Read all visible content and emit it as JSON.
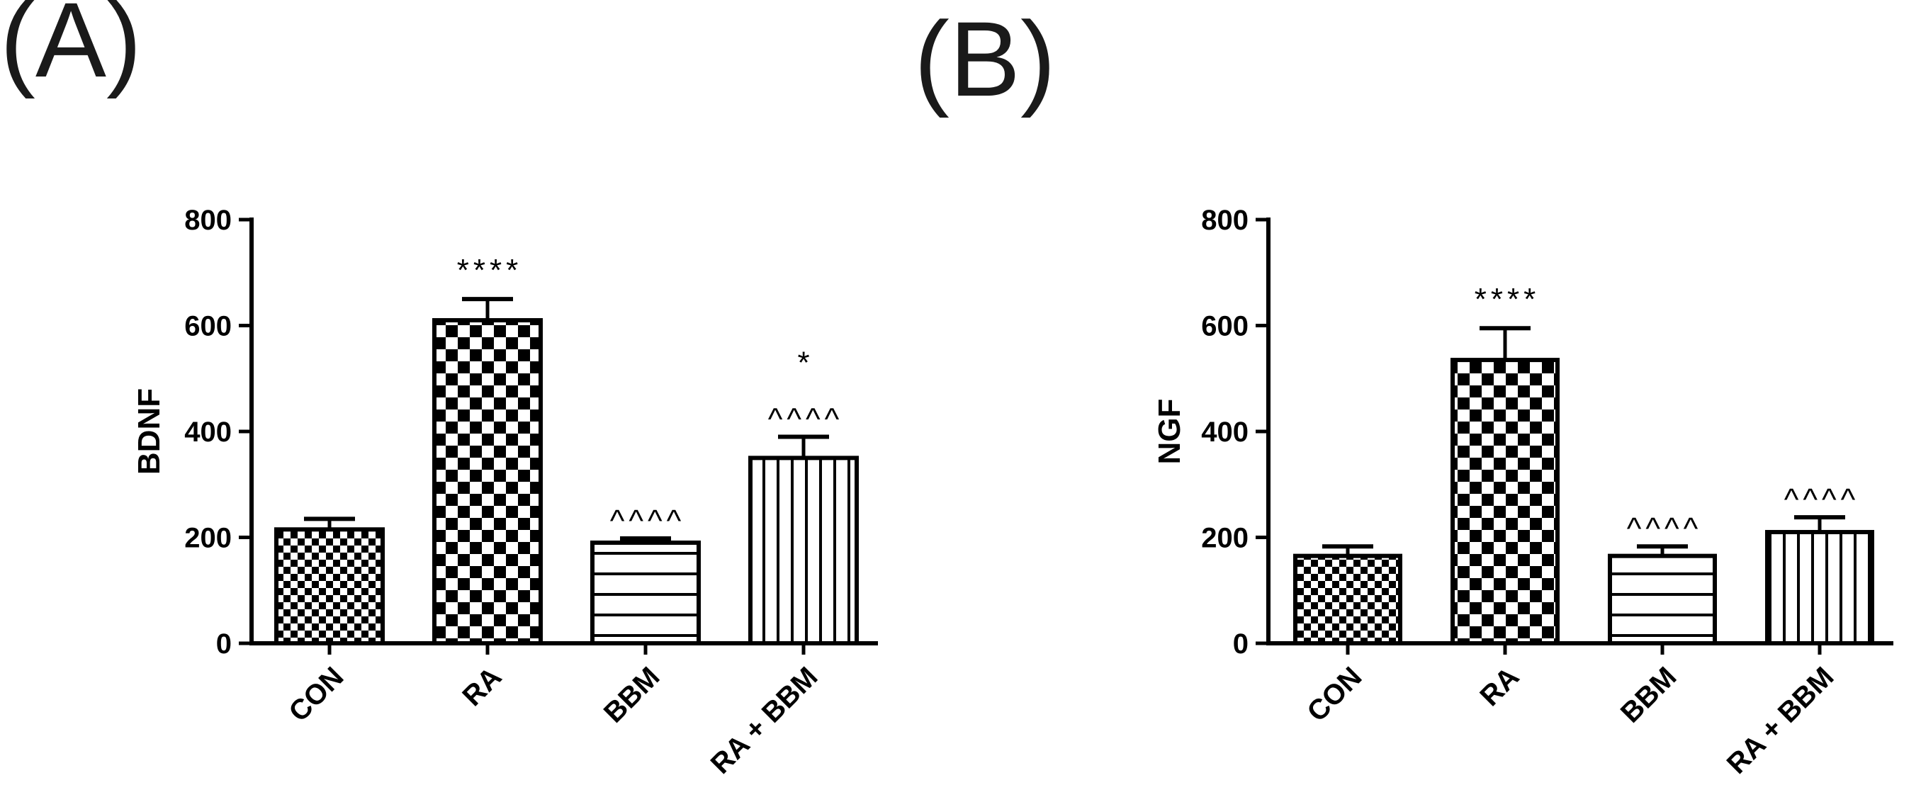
{
  "chart_data": [
    {
      "type": "bar",
      "panel_label": "(A)",
      "ylabel": "BDNF",
      "xlabel": "",
      "ylim": [
        0,
        800
      ],
      "yticks": [
        0,
        200,
        400,
        600,
        800
      ],
      "categories": [
        "CON",
        "RA",
        "BBM",
        "RA + BBM"
      ],
      "values": [
        215,
        610,
        190,
        350
      ],
      "errors": [
        20,
        40,
        8,
        40
      ],
      "patterns": [
        "small-checker",
        "large-checker",
        "horizontal-lines",
        "vertical-lines"
      ],
      "annotations": [
        [],
        [
          "****"
        ],
        [
          "^^^^"
        ],
        [
          "^^^^",
          "*"
        ]
      ]
    },
    {
      "type": "bar",
      "panel_label": "(B)",
      "ylabel": "NGF",
      "xlabel": "",
      "ylim": [
        0,
        800
      ],
      "yticks": [
        0,
        200,
        400,
        600,
        800
      ],
      "categories": [
        "CON",
        "RA",
        "BBM",
        "RA + BBM"
      ],
      "values": [
        165,
        535,
        165,
        210
      ],
      "errors": [
        18,
        60,
        18,
        28
      ],
      "patterns": [
        "small-checker",
        "large-checker",
        "horizontal-lines",
        "vertical-lines"
      ],
      "annotations": [
        [],
        [
          "****"
        ],
        [
          "^^^^"
        ],
        [
          "^^^^"
        ]
      ]
    }
  ]
}
